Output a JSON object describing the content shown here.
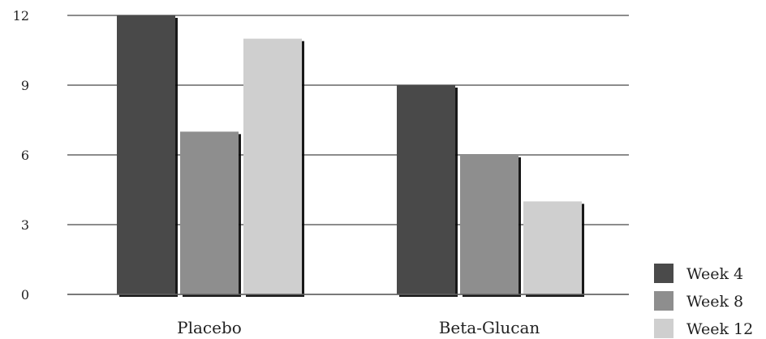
{
  "chart_data": {
    "type": "bar",
    "categories": [
      "Placebo",
      "Beta-Glucan"
    ],
    "series": [
      {
        "name": "Week 4",
        "values": [
          12,
          9
        ],
        "color": "#4a4a4a"
      },
      {
        "name": "Week 8",
        "values": [
          7,
          6
        ],
        "color": "#8e8e8e"
      },
      {
        "name": "Week 12",
        "values": [
          11,
          4
        ],
        "color": "#cfcfcf"
      }
    ],
    "yticks": [
      "0",
      "3",
      "6",
      "9",
      "12"
    ],
    "ylim": [
      0,
      12
    ],
    "grid": true,
    "legend_position": "bottom-right",
    "title": "",
    "xlabel": "",
    "ylabel": ""
  }
}
